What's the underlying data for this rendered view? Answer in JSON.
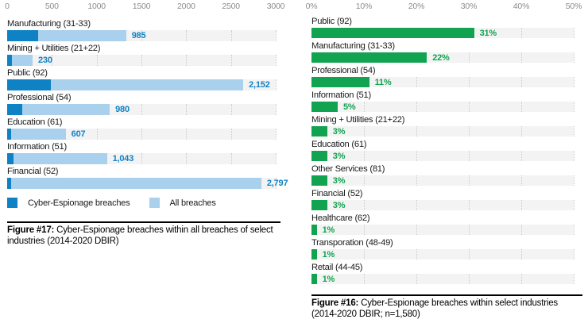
{
  "colors": {
    "espionage_blue": "#0e82c5",
    "all_breaches_blue": "#a9d0ec",
    "green": "#12a350",
    "track_gray": "#f3f3f3",
    "grid_gray": "#c9c9c9",
    "axis_text_gray": "#8c8c8c",
    "label_black": "#191919"
  },
  "chart_data": [
    {
      "id": "figure-17",
      "type": "bar",
      "orientation": "horizontal",
      "stacked": true,
      "grid": "dotted-vertical",
      "xlim": [
        0,
        3000
      ],
      "tick_values": [
        0,
        500,
        1000,
        1500,
        2000,
        2500,
        3000
      ],
      "tick_labels": [
        "0",
        "500",
        "1000",
        "1500",
        "2000",
        "2500",
        "3000"
      ],
      "categories": [
        "Manufacturing (31-33)",
        "Mining + Utilities (21+22)",
        "Public (92)",
        "Professional (54)",
        "Education (61)",
        "Information (51)",
        "Financial (52)"
      ],
      "series": [
        {
          "name": "Cyber-Espionage breaches",
          "color": "#0e82c5",
          "values": [
            344,
            54,
            485,
            166,
            47,
            72,
            42
          ],
          "labels": [
            "344",
            "54",
            "485",
            "166",
            "47",
            "72",
            "42"
          ]
        },
        {
          "name": "All breaches",
          "color": "#a9d0ec",
          "values": [
            985,
            230,
            2152,
            980,
            607,
            1043,
            2797
          ],
          "labels": [
            "985",
            "230",
            "2,152",
            "980",
            "607",
            "1,043",
            "2,797"
          ]
        }
      ],
      "value_label_color": "#0e82c5",
      "legend": [
        {
          "label": "Cyber-Espionage breaches",
          "color": "#0e82c5"
        },
        {
          "label": "All breaches",
          "color": "#a9d0ec"
        }
      ],
      "legend_position": "bottom",
      "caption_prefix": "Figure #17:",
      "caption_rest": " Cyber-Espionage breaches within all breaches of select industries (2014-2020 DBIR)",
      "title": "Figure #17: Cyber-Espionage breaches within all breaches of select industries (2014-2020 DBIR)",
      "xlabel": "",
      "ylabel": ""
    },
    {
      "id": "figure-16",
      "type": "bar",
      "orientation": "horizontal",
      "stacked": false,
      "grid": "dotted-vertical",
      "xlim": [
        0,
        50
      ],
      "tick_values": [
        0,
        10,
        20,
        30,
        40,
        50
      ],
      "tick_labels": [
        "0%",
        "10%",
        "20%",
        "30%",
        "40%",
        "50%"
      ],
      "categories": [
        "Public (92)",
        "Manufacturing (31-33)",
        "Professional (54)",
        "Information (51)",
        "Mining + Utilities (21+22)",
        "Education (61)",
        "Other Services (81)",
        "Financial (52)",
        "Healthcare (62)",
        "Transporation (48-49)",
        "Retail (44-45)"
      ],
      "series": [
        {
          "name": "Cyber-Espionage breaches share",
          "color": "#12a350",
          "values": [
            31,
            22,
            11,
            5,
            3,
            3,
            3,
            3,
            1,
            1,
            1
          ],
          "labels": [
            "31%",
            "22%",
            "11%",
            "5%",
            "3%",
            "3%",
            "3%",
            "3%",
            "1%",
            "1%",
            "1%"
          ]
        }
      ],
      "value_label_color": "#12a350",
      "legend": [],
      "caption_prefix": "Figure #16:",
      "caption_rest": " Cyber-Espionage breaches within select industries (2014-2020 DBIR; n=1,580)",
      "title": "Figure #16: Cyber-Espionage breaches within select industries (2014-2020 DBIR; n=1,580)",
      "xlabel": "",
      "ylabel": ""
    }
  ]
}
